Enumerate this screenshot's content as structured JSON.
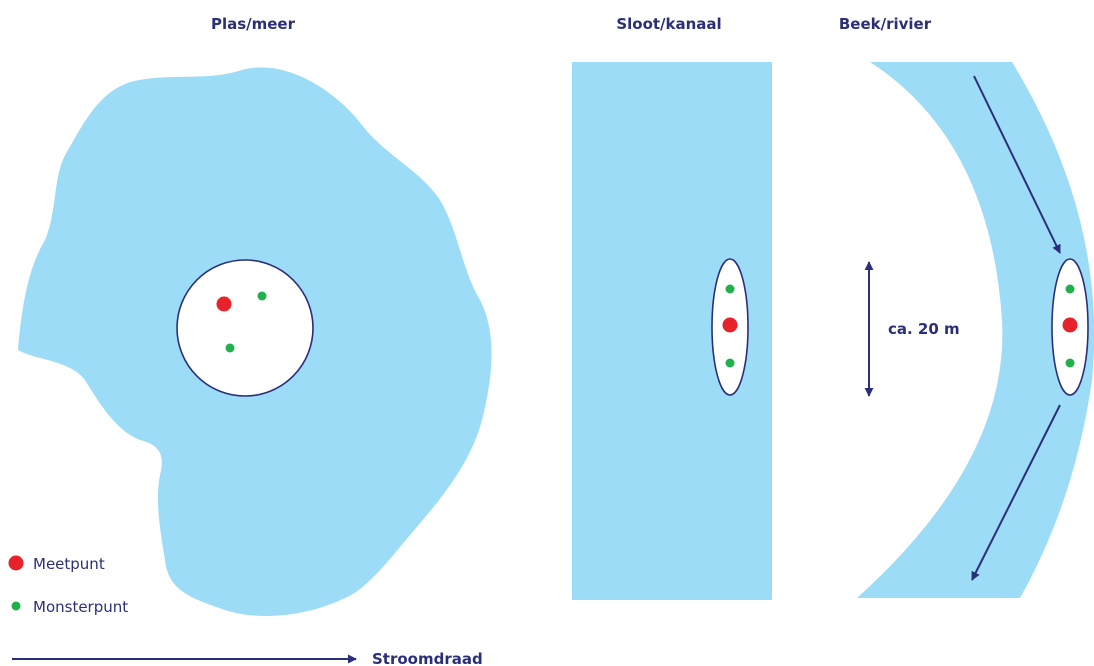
{
  "titles": {
    "lake": "Plas/meer",
    "ditch": "Sloot/kanaal",
    "stream": "Beek/rivier"
  },
  "distance_label": "ca. 20 m",
  "legend": {
    "measure_point": "Meetpunt",
    "sample_point": "Monsterpunt"
  },
  "flow_label": "Stroomdraad",
  "colors": {
    "water": "#9ddcf6",
    "navy": "#2b2f7a",
    "measure_point": "#e8222a",
    "sample_point": "#21b04b"
  }
}
